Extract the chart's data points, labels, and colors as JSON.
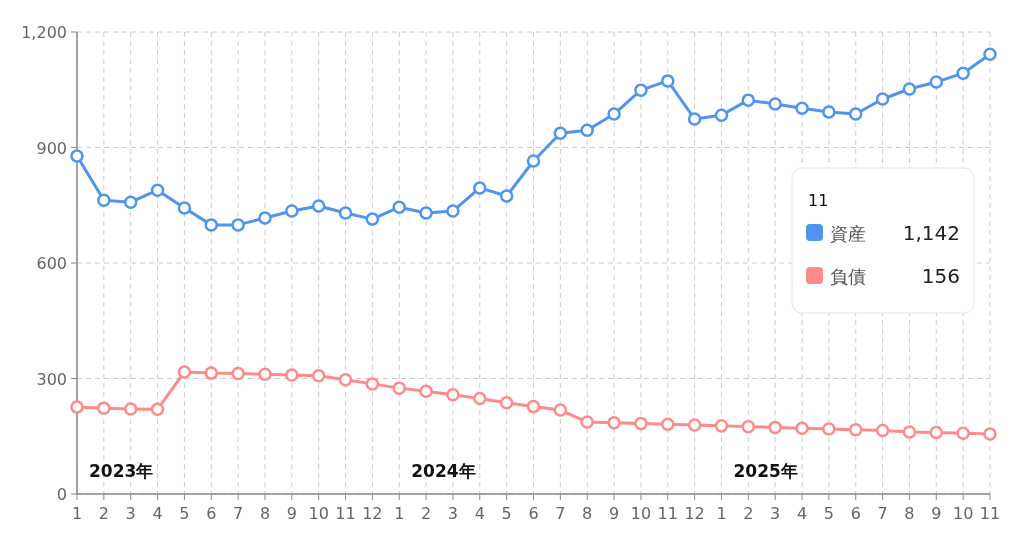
{
  "chart_data": {
    "type": "line",
    "x": [
      "2023-01",
      "2023-02",
      "2023-03",
      "2023-04",
      "2023-05",
      "2023-06",
      "2023-07",
      "2023-08",
      "2023-09",
      "2023-10",
      "2023-11",
      "2023-12",
      "2024-01",
      "2024-02",
      "2024-03",
      "2024-04",
      "2024-05",
      "2024-06",
      "2024-07",
      "2024-08",
      "2024-09",
      "2024-10",
      "2024-11",
      "2024-12",
      "2025-01",
      "2025-02",
      "2025-03",
      "2025-04",
      "2025-05",
      "2025-06",
      "2025-07",
      "2025-08",
      "2025-09",
      "2025-10",
      "2025-11"
    ],
    "series": [
      {
        "name": "資産",
        "color": "#4f94ef",
        "values": [
          878,
          763,
          758,
          789,
          743,
          699,
          699,
          717,
          735,
          748,
          730,
          714,
          745,
          730,
          735,
          795,
          774,
          865,
          937,
          945,
          987,
          1049,
          1073,
          974,
          984,
          1023,
          1013,
          1002,
          992,
          987,
          1026,
          1052,
          1070,
          1093,
          1142
        ]
      },
      {
        "name": "負債",
        "color": "#ff8a8a",
        "values": [
          226,
          223,
          221,
          220,
          317,
          314,
          313,
          311,
          309,
          307,
          297,
          286,
          275,
          267,
          258,
          248,
          237,
          227,
          218,
          187,
          185,
          183,
          181,
          179,
          177,
          175,
          173,
          171,
          169,
          167,
          165,
          161,
          160,
          158,
          156
        ]
      }
    ],
    "xlim": [
      "2023-01",
      "2025-11"
    ],
    "xticks": [
      {
        "value": "2023-01",
        "label": "1"
      },
      {
        "value": "2023-02",
        "label": "2"
      },
      {
        "value": "2023-03",
        "label": "3"
      },
      {
        "value": "2023-04",
        "label": "4"
      },
      {
        "value": "2023-05",
        "label": "5"
      },
      {
        "value": "2023-06",
        "label": "6"
      },
      {
        "value": "2023-07",
        "label": "7"
      },
      {
        "value": "2023-08",
        "label": "8"
      },
      {
        "value": "2023-09",
        "label": "9"
      },
      {
        "value": "2023-10",
        "label": "10"
      },
      {
        "value": "2023-11",
        "label": "11"
      },
      {
        "value": "2023-12",
        "label": "12"
      },
      {
        "value": "2024-01",
        "label": "1"
      },
      {
        "value": "2024-02",
        "label": "2"
      },
      {
        "value": "2024-03",
        "label": "3"
      },
      {
        "value": "2024-04",
        "label": "4"
      },
      {
        "value": "2024-05",
        "label": "5"
      },
      {
        "value": "2024-06",
        "label": "6"
      },
      {
        "value": "2024-07",
        "label": "7"
      },
      {
        "value": "2024-08",
        "label": "8"
      },
      {
        "value": "2024-09",
        "label": "9"
      },
      {
        "value": "2024-10",
        "label": "10"
      },
      {
        "value": "2024-11",
        "label": "11"
      },
      {
        "value": "2024-12",
        "label": "12"
      },
      {
        "value": "2025-01",
        "label": "1"
      },
      {
        "value": "2025-02",
        "label": "2"
      },
      {
        "value": "2025-03",
        "label": "3"
      },
      {
        "value": "2025-04",
        "label": "4"
      },
      {
        "value": "2025-05",
        "label": "5"
      },
      {
        "value": "2025-06",
        "label": "6"
      },
      {
        "value": "2025-07",
        "label": "7"
      },
      {
        "value": "2025-08",
        "label": "8"
      },
      {
        "value": "2025-09",
        "label": "9"
      },
      {
        "value": "2025-10",
        "label": "10"
      },
      {
        "value": "2025-11",
        "label": "11"
      }
    ],
    "ylim": [
      0,
      1200
    ],
    "yticks": [
      0,
      300,
      600,
      900,
      {
        "value": 1200,
        "label": "1,200"
      }
    ],
    "grid": true,
    "marker": "circle",
    "legend": "right",
    "annotations": [
      "2023年",
      "2024年",
      "2025年",
      "11",
      "1,142",
      "156"
    ]
  }
}
